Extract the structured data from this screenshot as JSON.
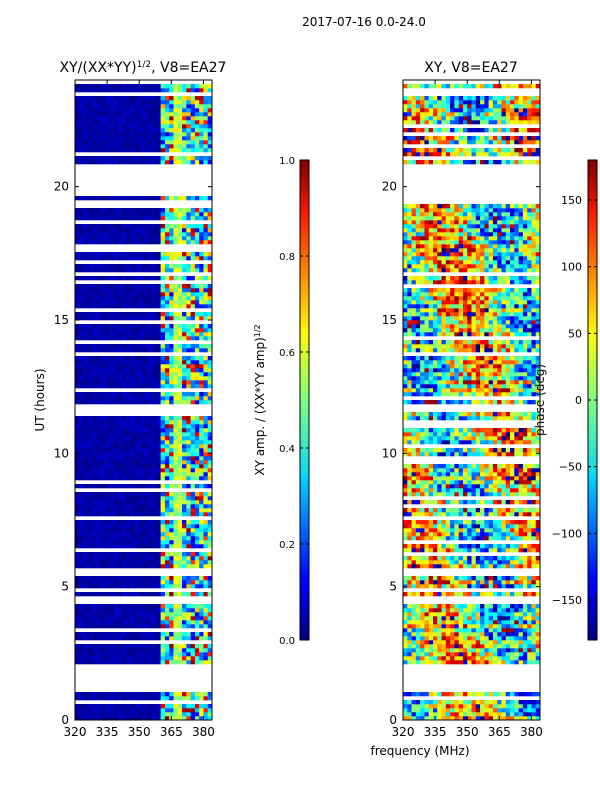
{
  "figure_title": "2017-07-16 0.0-24.0",
  "shared_xlabel": "frequency (MHz)",
  "chart_data": [
    {
      "type": "heatmap",
      "title_base": "XY/(XX*YY)",
      "title_sup": "1/2",
      "title_suffix": ", V8=EA27",
      "ylabel": "UT (hours)",
      "xlim": [
        320,
        384
      ],
      "ylim": [
        0,
        24
      ],
      "xticks": [
        320,
        335,
        350,
        365,
        380
      ],
      "yticks": [
        0,
        5,
        10,
        15,
        20
      ],
      "colorbar": {
        "label_base": "XY amp. / (XX*YY amp)",
        "label_sup": "1/2",
        "range": [
          0.0,
          1.0
        ],
        "ticks": [
          "0.0",
          "0.2",
          "0.4",
          "0.6",
          "0.8",
          "1.0"
        ]
      },
      "data_gaps_hours": [
        [
          1.0,
          2.1
        ],
        [
          4.3,
          4.6
        ],
        [
          11.5,
          11.8
        ],
        [
          19.7,
          20.9
        ],
        [
          23.4,
          23.6
        ],
        [
          23.8,
          24.0
        ]
      ]
    },
    {
      "type": "heatmap",
      "title": "XY, V8=EA27",
      "xlim": [
        320,
        384
      ],
      "ylim": [
        0,
        24
      ],
      "xticks": [
        320,
        335,
        350,
        365,
        380
      ],
      "yticks": [
        0,
        5,
        10,
        15,
        20
      ],
      "colorbar": {
        "label": "phase (deg)",
        "range": [
          -180,
          180
        ],
        "ticks": [
          "−150",
          "−100",
          "−50",
          "0",
          "50",
          "100",
          "150"
        ],
        "tick_values": [
          -150,
          -100,
          -50,
          0,
          50,
          100,
          150
        ]
      },
      "data_gaps_hours": [
        [
          1.0,
          2.1
        ],
        [
          4.3,
          4.6
        ],
        [
          11.5,
          11.8
        ],
        [
          19.7,
          20.9
        ],
        [
          23.4,
          23.6
        ],
        [
          23.8,
          24.0
        ]
      ]
    }
  ]
}
